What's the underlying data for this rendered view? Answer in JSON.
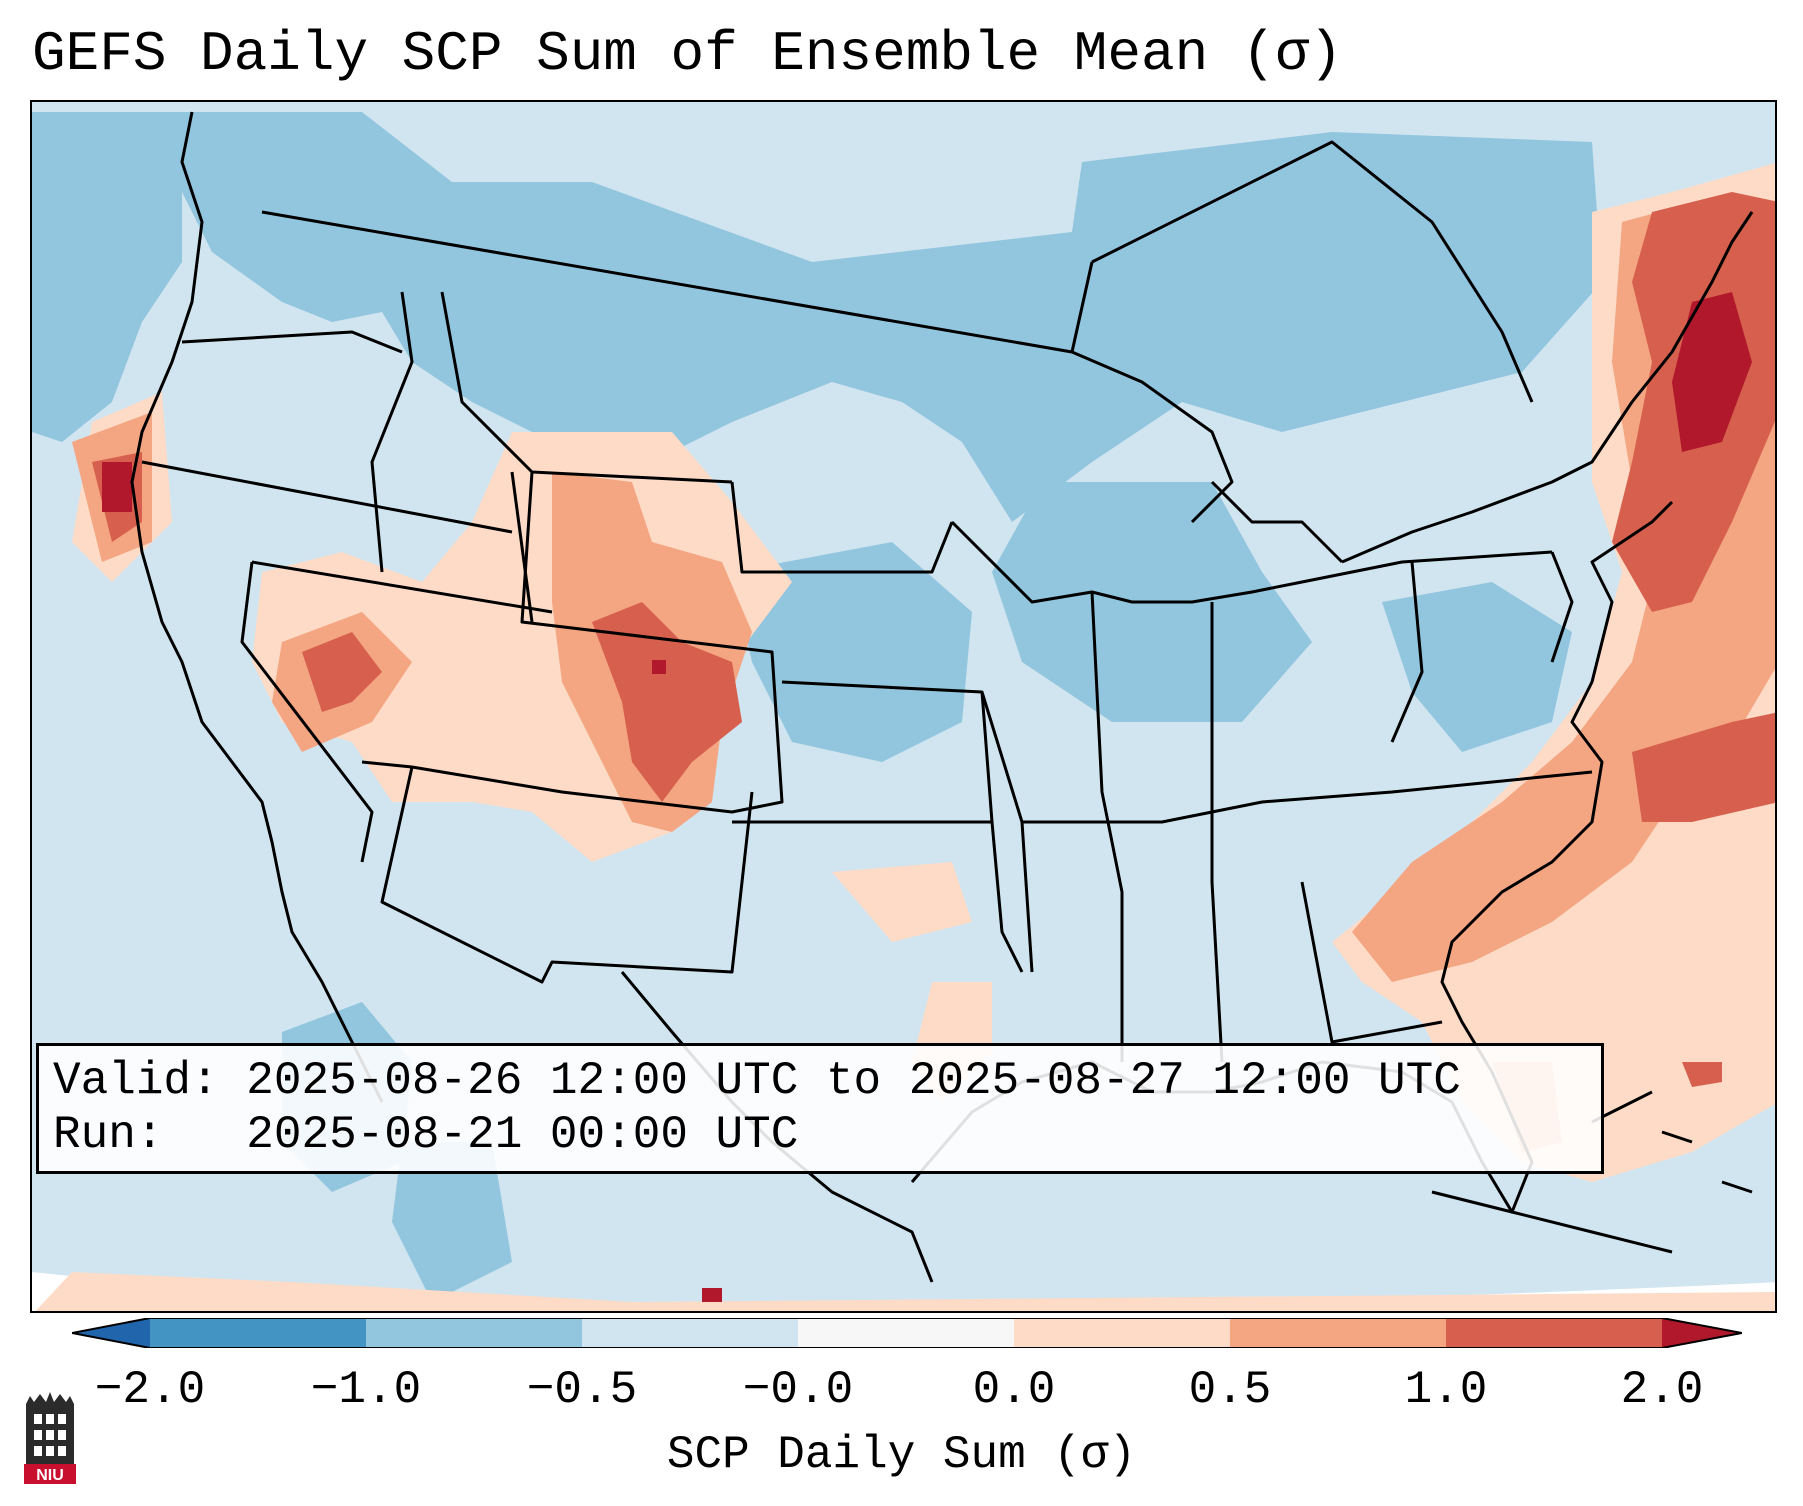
{
  "title": "GEFS Daily SCP Sum of Ensemble Mean (σ)",
  "info": {
    "valid_label": "Valid:",
    "valid_value": "2025-08-26 12:00 UTC to 2025-08-27 12:00 UTC",
    "run_label": "Run:",
    "run_value": "2025-08-21 00:00 UTC"
  },
  "colorbar": {
    "label": "SCP Daily Sum (σ)",
    "ticks": [
      "−2.0",
      "−1.0",
      "−0.5",
      "−0.0",
      "0.0",
      "0.5",
      "1.0",
      "2.0"
    ],
    "colors": {
      "under": "#2166ac",
      "bin_neg_2_to_1": "#4393c3",
      "bin_neg_1_to_05": "#92c5de",
      "bin_neg_05_to_0": "#d1e5f0",
      "bin_zero": "#f7f7f7",
      "bin_0_to_05": "#fddbc7",
      "bin_05_to_1": "#f4a582",
      "bin_1_to_2": "#d6604d",
      "over": "#b2182b"
    }
  },
  "logo": {
    "text": "NIU"
  }
}
